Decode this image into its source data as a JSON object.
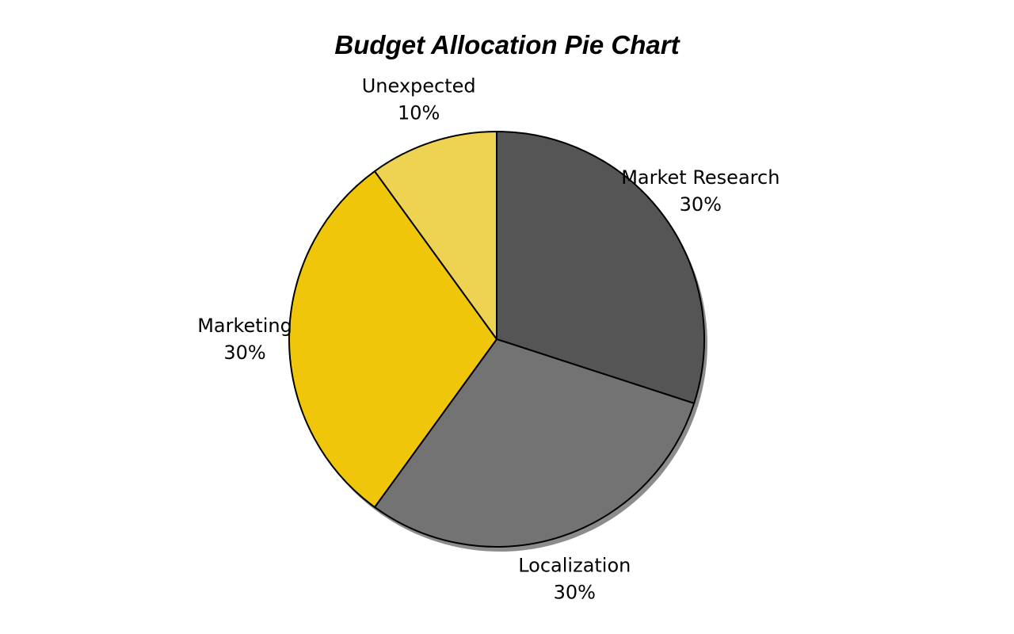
{
  "chart_data": {
    "type": "pie",
    "title": "Budget Allocation Pie Chart",
    "slices": [
      {
        "label": "Market Research",
        "value": 30,
        "pct_label": "30%",
        "color": "#555555"
      },
      {
        "label": "Localization",
        "value": 30,
        "pct_label": "30%",
        "color": "#737373"
      },
      {
        "label": "Marketing",
        "value": 30,
        "pct_label": "30%",
        "color": "#EFC60A"
      },
      {
        "label": "Unexpected",
        "value": 10,
        "pct_label": "10%",
        "color": "#EED353"
      }
    ],
    "start_angle_deg": 90,
    "direction": "clockwise",
    "shadow": true,
    "slice_edge_color": "#000000"
  }
}
